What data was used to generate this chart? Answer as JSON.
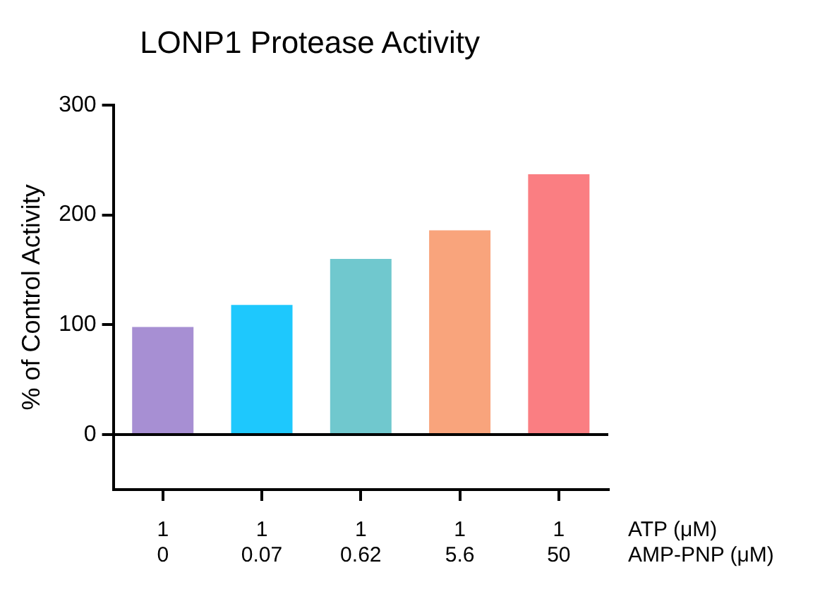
{
  "chart_data": {
    "type": "bar",
    "title": "LONP1 Protease Activity",
    "ylabel": "% of Control Activity",
    "categories": [
      "1\n0",
      "1\n0.07",
      "1\n0.62",
      "1\n5.6",
      "1\n50"
    ],
    "values": [
      98,
      118,
      160,
      186,
      237
    ],
    "colors": [
      "#a78fd3",
      "#1ec8fd",
      "#70c8ce",
      "#f9a47c",
      "#fa7e82"
    ],
    "ylim": [
      -50,
      300
    ],
    "yticks": [
      0,
      100,
      200,
      300
    ],
    "ref_lines": [
      {
        "axis": "y",
        "value": 0
      }
    ],
    "annotations": [
      "ATP (μM)",
      "AMP-PNP (μM)"
    ],
    "grid": false,
    "legend": false
  }
}
